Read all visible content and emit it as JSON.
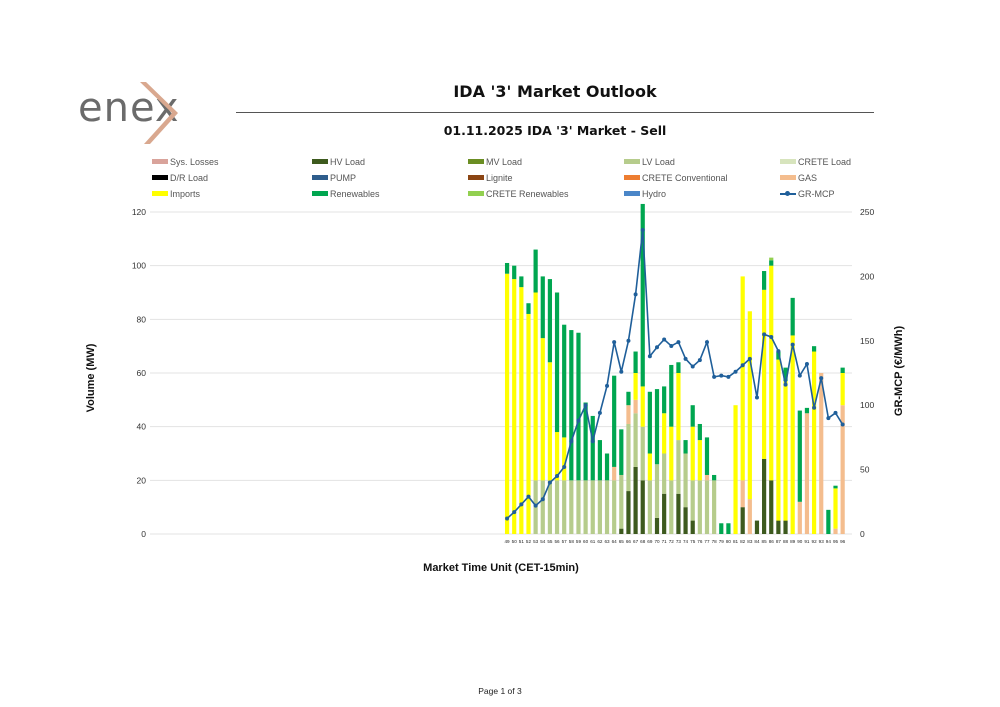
{
  "header": {
    "logo_text": "enex",
    "title": "IDA '3' Market Outlook",
    "subtitle": "01.11.2025  IDA '3' Market - Sell"
  },
  "footer": {
    "page": "Page 1 of 3"
  },
  "colors": {
    "Sys. Losses": "#d9a39b",
    "HV Load": "#3d5a1e",
    "MV Load": "#6b8e23",
    "LV Load": "#b6cc8c",
    "CRETE Load": "#d7e4bd",
    "D/R Load": "#000000",
    "PUMP": "#2e5d8c",
    "Lignite": "#8b4513",
    "CRETE Conventional": "#ed7d31",
    "GAS": "#f4bd8e",
    "Imports": "#ffff00",
    "Renewables": "#00a650",
    "CRETE Renewables": "#92d050",
    "Hydro": "#4a86c8",
    "GR-MCP": "#1f5f9a"
  },
  "chart_data": {
    "type": "bar",
    "stacked": true,
    "title": "",
    "xlabel": "Market Time Unit (CET-15min)",
    "ylabel": "Volume (MW)",
    "y2label": "GR-MCP (€/MWh)",
    "ylim": [
      0,
      120
    ],
    "y2lim": [
      0,
      250
    ],
    "yticks": [
      0,
      20,
      40,
      60,
      80,
      100,
      120
    ],
    "y2ticks": [
      0,
      50,
      100,
      150,
      200,
      250
    ],
    "grid": true,
    "legend_position": "top",
    "legend": [
      "Sys. Losses",
      "HV Load",
      "MV Load",
      "LV Load",
      "CRETE Load",
      "D/R Load",
      "PUMP",
      "Lignite",
      "CRETE Conventional",
      "GAS",
      "Imports",
      "Renewables",
      "CRETE Renewables",
      "Hydro",
      "GR-MCP"
    ],
    "categories": [
      "49",
      "50",
      "51",
      "52",
      "53",
      "54",
      "55",
      "56",
      "57",
      "58",
      "59",
      "60",
      "61",
      "62",
      "63",
      "64",
      "65",
      "66",
      "67",
      "68",
      "69",
      "70",
      "71",
      "72",
      "73",
      "74",
      "75",
      "76",
      "77",
      "78",
      "79",
      "80",
      "81",
      "82",
      "83",
      "84",
      "85",
      "86",
      "87",
      "88",
      "89",
      "90",
      "91",
      "92",
      "93",
      "94",
      "95",
      "96"
    ],
    "series": [
      {
        "name": "HV Load",
        "values": [
          0,
          0,
          0,
          0,
          0,
          0,
          0,
          0,
          0,
          0,
          0,
          0,
          0,
          0,
          0,
          0,
          2,
          16,
          25,
          20,
          0,
          6,
          15,
          0,
          15,
          10,
          5,
          0,
          0,
          0,
          0,
          0,
          0,
          10,
          0,
          5,
          28,
          20,
          5,
          5,
          0,
          0,
          0,
          0,
          0,
          0,
          0,
          0
        ]
      },
      {
        "name": "MV Load",
        "values": [
          0,
          0,
          0,
          0,
          0,
          0,
          0,
          0,
          0,
          0,
          0,
          0,
          0,
          0,
          0,
          0,
          0,
          0,
          0,
          0,
          0,
          0,
          0,
          0,
          0,
          0,
          0,
          0,
          0,
          0,
          0,
          0,
          0,
          0,
          0,
          0,
          0,
          0,
          0,
          0,
          0,
          0,
          0,
          0,
          0,
          0,
          0,
          0
        ]
      },
      {
        "name": "LV Load",
        "values": [
          0,
          0,
          0,
          0,
          20,
          20,
          20,
          20,
          20,
          20,
          20,
          20,
          20,
          20,
          20,
          20,
          20,
          25,
          20,
          20,
          20,
          20,
          15,
          20,
          20,
          20,
          15,
          20,
          20,
          20,
          0,
          0,
          0,
          0,
          0,
          0,
          0,
          0,
          0,
          0,
          0,
          0,
          0,
          0,
          0,
          0,
          0,
          0
        ]
      },
      {
        "name": "CRETE Load",
        "values": [
          0,
          0,
          0,
          0,
          0,
          0,
          0,
          0,
          0,
          0,
          0,
          0,
          0,
          0,
          0,
          0,
          0,
          0,
          0,
          0,
          0,
          0,
          0,
          0,
          0,
          0,
          0,
          0,
          0,
          0,
          0,
          0,
          0,
          0,
          0,
          0,
          0,
          0,
          0,
          0,
          0,
          0,
          0,
          0,
          0,
          0,
          0,
          0
        ]
      },
      {
        "name": "Sys. Losses",
        "values": [
          0,
          0,
          0,
          0,
          0,
          0,
          0,
          0,
          0,
          0,
          0,
          0,
          0,
          0,
          0,
          0,
          0,
          0,
          0,
          0,
          0,
          0,
          0,
          0,
          0,
          0,
          0,
          0,
          0,
          0,
          0,
          0,
          0,
          0,
          0,
          0,
          0,
          0,
          0,
          0,
          0,
          0,
          0,
          0,
          0,
          0,
          0,
          0
        ]
      },
      {
        "name": "GAS",
        "values": [
          0,
          0,
          0,
          0,
          0,
          0,
          0,
          0,
          0,
          0,
          0,
          0,
          0,
          0,
          0,
          5,
          0,
          7,
          5,
          0,
          0,
          0,
          0,
          0,
          0,
          0,
          0,
          0,
          2,
          0,
          0,
          0,
          0,
          10,
          13,
          0,
          0,
          0,
          0,
          0,
          0,
          12,
          45,
          0,
          60,
          0,
          2,
          48
        ]
      },
      {
        "name": "Imports",
        "values": [
          97,
          95,
          92,
          82,
          70,
          53,
          44,
          18,
          16,
          0,
          0,
          0,
          0,
          0,
          0,
          0,
          0,
          0,
          10,
          15,
          10,
          0,
          15,
          20,
          25,
          0,
          20,
          15,
          0,
          0,
          0,
          0,
          48,
          76,
          70,
          0,
          63,
          80,
          60,
          52,
          74,
          0,
          0,
          68,
          0,
          0,
          15,
          12
        ]
      },
      {
        "name": "Renewables",
        "values": [
          4,
          5,
          4,
          4,
          16,
          23,
          31,
          52,
          42,
          56,
          55,
          29,
          24,
          15,
          10,
          34,
          17,
          5,
          8,
          68,
          23,
          28,
          10,
          23,
          4,
          5,
          8,
          6,
          14,
          2,
          4,
          4,
          0,
          0,
          0,
          0,
          7,
          2,
          3,
          5,
          14,
          34,
          2,
          2,
          0,
          9,
          1,
          2
        ]
      },
      {
        "name": "CRETE Renewables",
        "values": [
          0,
          0,
          0,
          0,
          0,
          0,
          0,
          0,
          0,
          0,
          0,
          0,
          0,
          0,
          0,
          0,
          0,
          0,
          0,
          0,
          0,
          0,
          0,
          0,
          0,
          0,
          0,
          0,
          0,
          0,
          0,
          0,
          0,
          0,
          0,
          0,
          0,
          1,
          0,
          0,
          0,
          0,
          0,
          0,
          0,
          0,
          0,
          0
        ]
      },
      {
        "name": "D/R Load",
        "values": [
          0,
          0,
          0,
          0,
          0,
          0,
          0,
          0,
          0,
          0,
          0,
          0,
          0,
          0,
          0,
          0,
          0,
          0,
          0,
          0,
          0,
          0,
          0,
          0,
          0,
          0,
          0,
          0,
          0,
          0,
          0,
          0,
          0,
          0,
          0,
          0,
          0,
          0,
          0,
          0,
          0,
          0,
          0,
          0,
          0,
          0,
          0,
          0
        ]
      },
      {
        "name": "PUMP",
        "values": [
          0,
          0,
          0,
          0,
          0,
          0,
          0,
          0,
          0,
          0,
          0,
          0,
          0,
          0,
          0,
          0,
          0,
          0,
          0,
          0,
          0,
          0,
          0,
          0,
          0,
          0,
          0,
          0,
          0,
          0,
          0,
          0,
          0,
          0,
          0,
          0,
          0,
          0,
          0,
          0,
          0,
          0,
          0,
          0,
          0,
          0,
          0,
          0
        ]
      },
      {
        "name": "Lignite",
        "values": [
          0,
          0,
          0,
          0,
          0,
          0,
          0,
          0,
          0,
          0,
          0,
          0,
          0,
          0,
          0,
          0,
          0,
          0,
          0,
          0,
          0,
          0,
          0,
          0,
          0,
          0,
          0,
          0,
          0,
          0,
          0,
          0,
          0,
          0,
          0,
          0,
          0,
          0,
          0,
          0,
          0,
          0,
          0,
          0,
          0,
          0,
          0,
          0
        ]
      },
      {
        "name": "CRETE Conventional",
        "values": [
          0,
          0,
          0,
          0,
          0,
          0,
          0,
          0,
          0,
          0,
          0,
          0,
          0,
          0,
          0,
          0,
          0,
          0,
          0,
          0,
          0,
          0,
          0,
          0,
          0,
          0,
          0,
          0,
          0,
          0,
          0,
          0,
          0,
          0,
          0,
          0,
          0,
          0,
          0,
          0,
          0,
          0,
          0,
          0,
          0,
          0,
          0,
          0
        ]
      },
      {
        "name": "Hydro",
        "values": [
          0,
          0,
          0,
          0,
          0,
          0,
          0,
          0,
          0,
          0,
          0,
          0,
          0,
          0,
          0,
          0,
          0,
          0,
          0,
          0,
          0,
          0,
          0,
          0,
          0,
          0,
          0,
          0,
          0,
          0,
          0,
          0,
          0,
          0,
          0,
          0,
          0,
          0,
          0,
          0,
          0,
          0,
          0,
          0,
          0,
          0,
          0,
          0
        ]
      }
    ],
    "line": {
      "name": "GR-MCP",
      "axis": "right",
      "values": [
        12,
        17,
        23,
        29,
        22,
        27,
        40,
        45,
        52,
        72,
        88,
        100,
        72,
        94,
        115,
        149,
        126,
        150,
        186,
        236,
        138,
        145,
        151,
        146,
        149,
        136,
        130,
        135,
        149,
        122,
        123,
        122,
        126,
        131,
        136,
        106,
        155,
        153,
        142,
        116,
        147,
        123,
        132,
        98,
        121,
        90,
        94,
        85
      ]
    }
  }
}
